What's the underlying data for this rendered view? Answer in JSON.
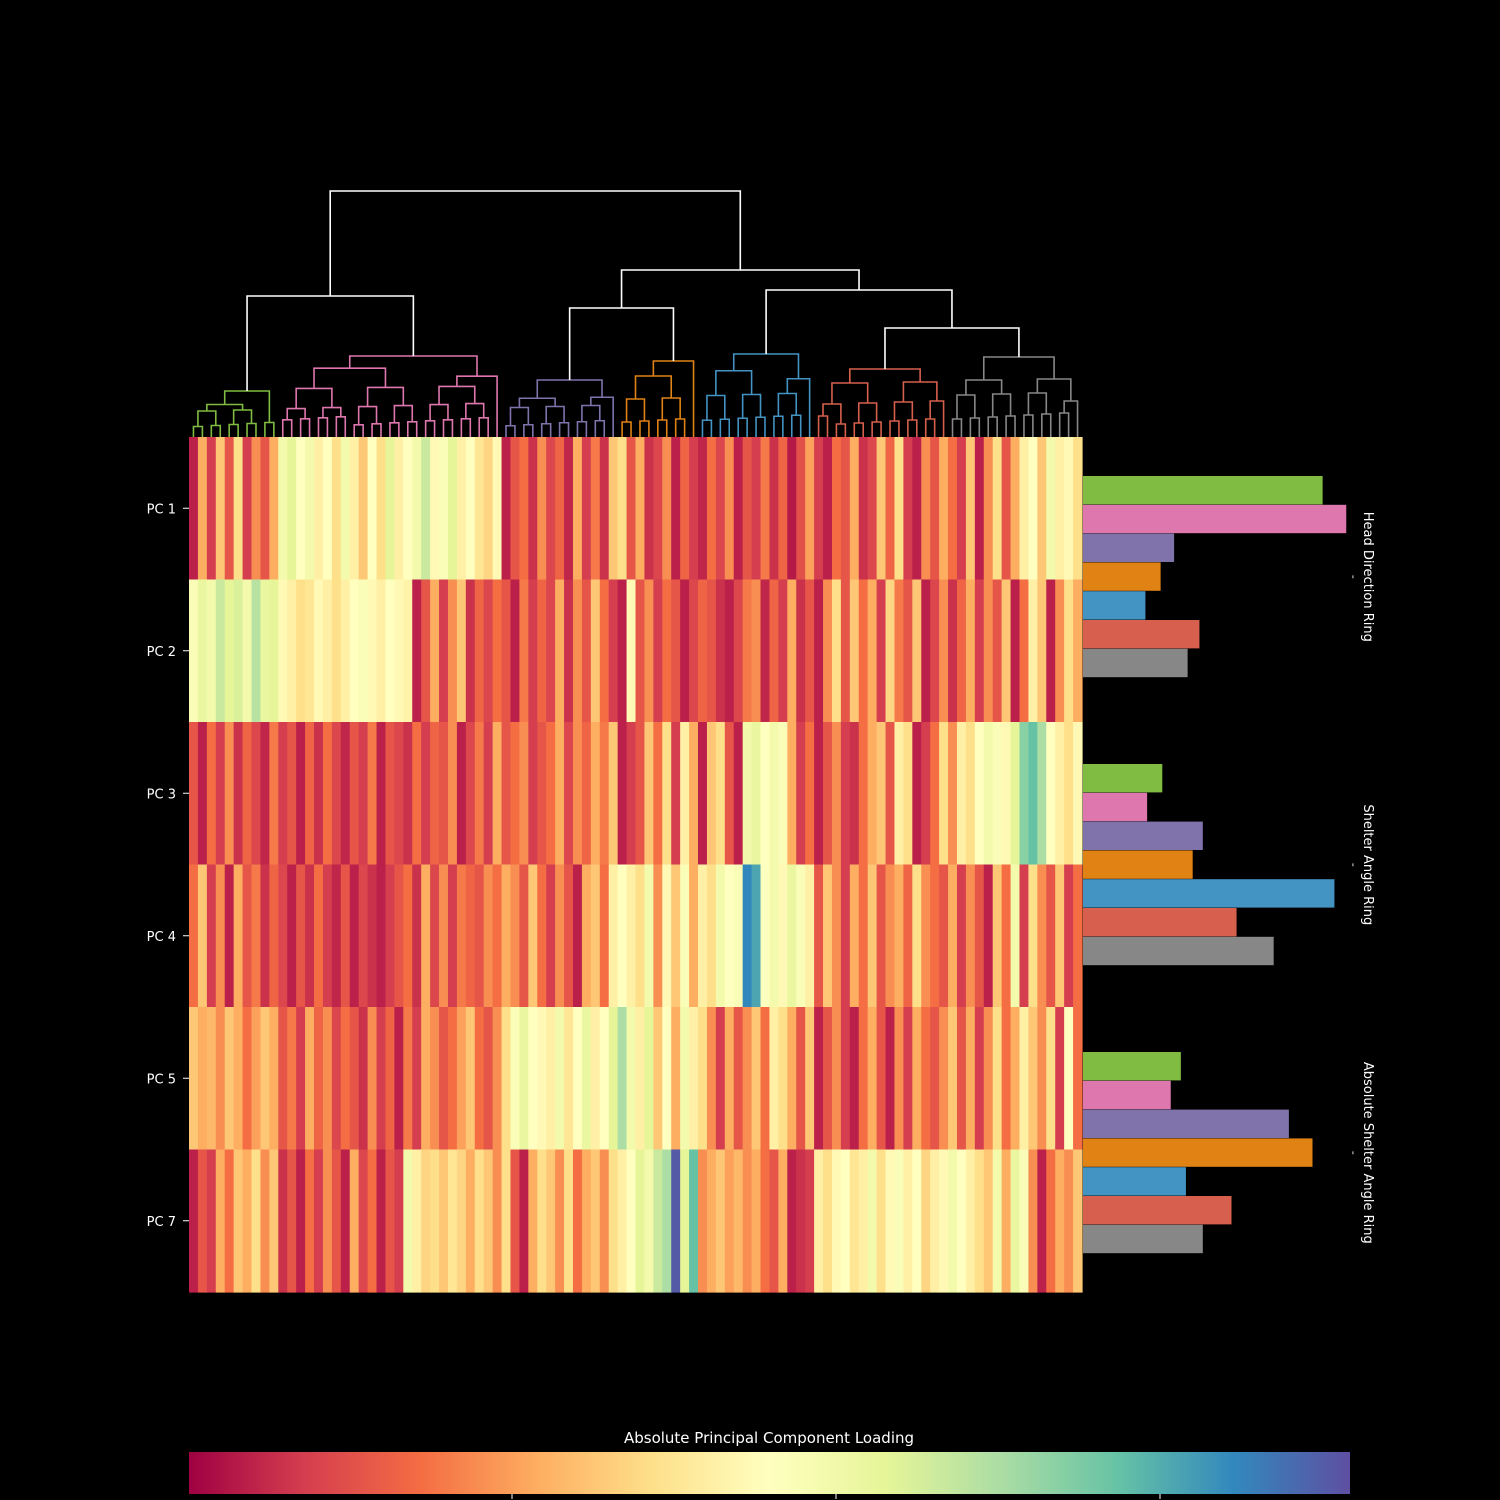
{
  "chart_data": {
    "type": "heatmap",
    "title": "",
    "colorbar_label": "Absolute Principal Component Loading",
    "colormap": "Spectral",
    "n_columns": 100,
    "row_labels": [
      "PC 1",
      "PC 2",
      "PC 3",
      "PC 4",
      "PC 5",
      "PC 7"
    ],
    "cluster_colors": [
      "#7fbc41",
      "#de77ae",
      "#8073ac",
      "#e08214",
      "#4393c3",
      "#d6604d",
      "#878787"
    ],
    "cluster_sizes": [
      10,
      25,
      13,
      9,
      13,
      15,
      15
    ],
    "side_bars": [
      {
        "label": "Head Direction Ring",
        "values": [
          0.71,
          0.78,
          0.27,
          0.23,
          0.185,
          0.345,
          0.31
        ]
      },
      {
        "label": "Shelter Angle Ring",
        "values": [
          0.235,
          0.19,
          0.355,
          0.325,
          0.745,
          0.455,
          0.565
        ]
      },
      {
        "label": "Absolute Shelter Angle Ring",
        "values": [
          0.29,
          0.26,
          0.61,
          0.68,
          0.305,
          0.44,
          0.355
        ]
      }
    ],
    "side_bar_separator_label": "-",
    "heatmap_values": [
      [
        0.05,
        0.3,
        0.1,
        0.35,
        0.15,
        0.4,
        0.1,
        0.25,
        0.15,
        0.3,
        0.55,
        0.6,
        0.5,
        0.55,
        0.45,
        0.5,
        0.4,
        0.55,
        0.45,
        0.35,
        0.5,
        0.4,
        0.6,
        0.45,
        0.5,
        0.55,
        0.65,
        0.48,
        0.52,
        0.6,
        0.45,
        0.5,
        0.42,
        0.38,
        0.48,
        0.05,
        0.15,
        0.2,
        0.08,
        0.25,
        0.12,
        0.18,
        0.06,
        0.3,
        0.1,
        0.22,
        0.08,
        0.35,
        0.4,
        0.15,
        0.3,
        0.08,
        0.12,
        0.25,
        0.05,
        0.18,
        0.1,
        0.06,
        0.2,
        0.12,
        0.25,
        0.05,
        0.15,
        0.1,
        0.22,
        0.08,
        0.18,
        0.04,
        0.14,
        0.28,
        0.1,
        0.05,
        0.2,
        0.15,
        0.3,
        0.08,
        0.12,
        0.35,
        0.18,
        0.4,
        0.1,
        0.05,
        0.25,
        0.15,
        0.3,
        0.2,
        0.1,
        0.35,
        0.05,
        0.25,
        0.4,
        0.15,
        0.3,
        0.45,
        0.5,
        0.35,
        0.55,
        0.45,
        0.48,
        0.4
      ],
      [
        0.52,
        0.58,
        0.55,
        0.65,
        0.6,
        0.62,
        0.55,
        0.68,
        0.58,
        0.6,
        0.48,
        0.45,
        0.4,
        0.42,
        0.48,
        0.45,
        0.4,
        0.45,
        0.5,
        0.52,
        0.48,
        0.45,
        0.5,
        0.48,
        0.46,
        0.05,
        0.15,
        0.3,
        0.1,
        0.25,
        0.35,
        0.08,
        0.18,
        0.12,
        0.2,
        0.15,
        0.05,
        0.22,
        0.1,
        0.18,
        0.12,
        0.3,
        0.08,
        0.25,
        0.15,
        0.35,
        0.2,
        0.1,
        0.05,
        0.48,
        0.15,
        0.25,
        0.1,
        0.2,
        0.15,
        0.05,
        0.12,
        0.18,
        0.15,
        0.08,
        0.05,
        0.12,
        0.22,
        0.25,
        0.06,
        0.18,
        0.1,
        0.3,
        0.08,
        0.15,
        0.05,
        0.25,
        0.4,
        0.15,
        0.35,
        0.2,
        0.3,
        0.1,
        0.38,
        0.22,
        0.15,
        0.35,
        0.05,
        0.12,
        0.25,
        0.08,
        0.18,
        0.3,
        0.1,
        0.25,
        0.15,
        0.35,
        0.05,
        0.2,
        0.45,
        0.35,
        0.05,
        0.25,
        0.4,
        0.3
      ],
      [
        0.15,
        0.05,
        0.2,
        0.1,
        0.25,
        0.08,
        0.18,
        0.12,
        0.06,
        0.22,
        0.1,
        0.15,
        0.05,
        0.18,
        0.08,
        0.2,
        0.12,
        0.06,
        0.15,
        0.1,
        0.22,
        0.05,
        0.15,
        0.12,
        0.08,
        0.2,
        0.1,
        0.18,
        0.15,
        0.25,
        0.05,
        0.12,
        0.22,
        0.1,
        0.3,
        0.15,
        0.2,
        0.25,
        0.1,
        0.15,
        0.2,
        0.3,
        0.12,
        0.25,
        0.18,
        0.3,
        0.22,
        0.35,
        0.05,
        0.1,
        0.15,
        0.35,
        0.2,
        0.4,
        0.1,
        0.45,
        0.3,
        0.05,
        0.35,
        0.4,
        0.15,
        0.05,
        0.55,
        0.58,
        0.5,
        0.55,
        0.52,
        0.3,
        0.1,
        0.2,
        0.05,
        0.15,
        0.25,
        0.1,
        0.08,
        0.2,
        0.3,
        0.35,
        0.15,
        0.45,
        0.4,
        0.05,
        0.1,
        0.2,
        0.4,
        0.25,
        0.45,
        0.4,
        0.5,
        0.55,
        0.52,
        0.48,
        0.6,
        0.75,
        0.8,
        0.7,
        0.5,
        0.45,
        0.4,
        0.48
      ],
      [
        0.2,
        0.35,
        0.1,
        0.25,
        0.05,
        0.3,
        0.15,
        0.22,
        0.08,
        0.18,
        0.12,
        0.05,
        0.15,
        0.08,
        0.2,
        0.1,
        0.06,
        0.15,
        0.05,
        0.12,
        0.08,
        0.05,
        0.1,
        0.15,
        0.2,
        0.08,
        0.3,
        0.12,
        0.25,
        0.1,
        0.22,
        0.18,
        0.15,
        0.25,
        0.2,
        0.3,
        0.25,
        0.15,
        0.35,
        0.2,
        0.1,
        0.25,
        0.15,
        0.05,
        0.3,
        0.35,
        0.2,
        0.45,
        0.5,
        0.45,
        0.4,
        0.55,
        0.25,
        0.48,
        0.35,
        0.52,
        0.3,
        0.45,
        0.4,
        0.55,
        0.5,
        0.52,
        0.9,
        0.85,
        0.5,
        0.55,
        0.48,
        0.58,
        0.52,
        0.45,
        0.15,
        0.35,
        0.25,
        0.1,
        0.3,
        0.2,
        0.35,
        0.15,
        0.25,
        0.3,
        0.18,
        0.4,
        0.25,
        0.2,
        0.15,
        0.3,
        0.1,
        0.25,
        0.15,
        0.05,
        0.35,
        0.2,
        0.55,
        0.1,
        0.4,
        0.25,
        0.15,
        0.35,
        0.1,
        0.2
      ],
      [
        0.35,
        0.3,
        0.32,
        0.25,
        0.35,
        0.3,
        0.2,
        0.28,
        0.35,
        0.3,
        0.15,
        0.22,
        0.1,
        0.3,
        0.18,
        0.25,
        0.12,
        0.2,
        0.15,
        0.08,
        0.25,
        0.1,
        0.18,
        0.05,
        0.22,
        0.1,
        0.3,
        0.25,
        0.15,
        0.2,
        0.28,
        0.35,
        0.2,
        0.15,
        0.25,
        0.4,
        0.52,
        0.58,
        0.5,
        0.48,
        0.45,
        0.55,
        0.42,
        0.5,
        0.58,
        0.45,
        0.5,
        0.6,
        0.7,
        0.55,
        0.45,
        0.6,
        0.35,
        0.5,
        0.3,
        0.55,
        0.45,
        0.4,
        0.25,
        0.1,
        0.3,
        0.15,
        0.25,
        0.35,
        0.2,
        0.45,
        0.4,
        0.3,
        0.15,
        0.35,
        0.05,
        0.15,
        0.25,
        0.1,
        0.05,
        0.2,
        0.3,
        0.15,
        0.05,
        0.25,
        0.1,
        0.3,
        0.2,
        0.15,
        0.25,
        0.35,
        0.15,
        0.3,
        0.1,
        0.25,
        0.4,
        0.2,
        0.3,
        0.45,
        0.35,
        0.25,
        0.4,
        0.1,
        0.5,
        0.2
      ],
      [
        0.05,
        0.15,
        0.1,
        0.3,
        0.2,
        0.35,
        0.3,
        0.4,
        0.25,
        0.35,
        0.08,
        0.15,
        0.05,
        0.2,
        0.1,
        0.25,
        0.15,
        0.05,
        0.3,
        0.12,
        0.2,
        0.05,
        0.15,
        0.1,
        0.55,
        0.45,
        0.38,
        0.4,
        0.35,
        0.42,
        0.38,
        0.3,
        0.4,
        0.35,
        0.25,
        0.4,
        0.15,
        0.05,
        0.3,
        0.4,
        0.35,
        0.25,
        0.4,
        0.2,
        0.3,
        0.35,
        0.25,
        0.4,
        0.45,
        0.5,
        0.6,
        0.55,
        0.65,
        0.7,
        0.98,
        0.6,
        0.8,
        0.25,
        0.3,
        0.35,
        0.28,
        0.32,
        0.25,
        0.3,
        0.2,
        0.15,
        0.3,
        0.05,
        0.08,
        0.1,
        0.45,
        0.4,
        0.48,
        0.5,
        0.42,
        0.45,
        0.55,
        0.4,
        0.48,
        0.52,
        0.45,
        0.5,
        0.38,
        0.45,
        0.48,
        0.55,
        0.5,
        0.45,
        0.4,
        0.35,
        0.55,
        0.3,
        0.58,
        0.52,
        0.25,
        0.05,
        0.2,
        0.3,
        0.25,
        0.35
      ]
    ],
    "colorbar_ticks": [
      "",
      "",
      ""
    ]
  }
}
